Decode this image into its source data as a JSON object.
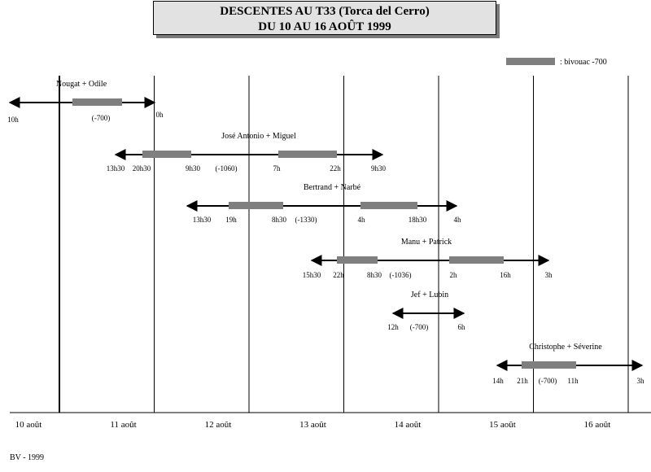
{
  "title_line1": "DESCENTES AU T33 (Torca del Cerro)",
  "title_line2": "DU 10 AU 16 AOÛT 1999",
  "footer": "BV - 1999",
  "colors": {
    "bivouac": "#7f7f7f",
    "line": "#000000",
    "title_bg": "#e2e2e2"
  },
  "chart_data": {
    "type": "timeline",
    "title": "DESCENTES AU T33 (Torca del Cerro)",
    "subtitle": "DU 10 AU 16 AOÛT 1999",
    "x_unit": "day (août 1999)",
    "xlim": [
      10,
      16.7
    ],
    "day_ticks": [
      {
        "day": 10,
        "label": "10 août"
      },
      {
        "day": 11,
        "label": "11 août"
      },
      {
        "day": 12,
        "label": "12 août"
      },
      {
        "day": 13,
        "label": "13 août"
      },
      {
        "day": 14,
        "label": "14 août"
      },
      {
        "day": 15,
        "label": "15 août"
      },
      {
        "day": 16,
        "label": "16 août"
      }
    ],
    "legend": {
      "label": ": bivouac -700",
      "position": "top-right"
    },
    "teams": [
      {
        "name": "Nougat + Odile",
        "start": 10.0,
        "end": 11.0,
        "bivouacs": [
          {
            "start": 10.6,
            "end": 11.1
          }
        ],
        "labels": [
          {
            "x": 10.0,
            "text": "10h",
            "row": "below"
          },
          {
            "x": 10.85,
            "text": "(-700)",
            "row": "under"
          },
          {
            "x": 11.05,
            "text": "0h",
            "row": "above"
          }
        ]
      },
      {
        "name": "José Antonio + Miguel",
        "start": 11.1,
        "end": 13.4,
        "bivouacs": [
          {
            "start": 11.35,
            "end": 11.88
          },
          {
            "start": 12.29,
            "end": 12.92
          }
        ],
        "labels": [
          {
            "x": 11.1,
            "text": "13h30"
          },
          {
            "x": 11.4,
            "text": "20h30"
          },
          {
            "x": 11.87,
            "text": "9h30"
          },
          {
            "x": 12.1,
            "text": "(-1060)"
          },
          {
            "x": 12.29,
            "text": "7h"
          },
          {
            "x": 12.92,
            "text": "22h"
          },
          {
            "x": 13.4,
            "text": "9h30"
          }
        ]
      },
      {
        "name": "Bertrand + Narbé",
        "start": 12.0,
        "end": 14.2,
        "bivouacs": [
          {
            "start": 12.79,
            "end": 13.38
          },
          {
            "start": 14.1,
            "end": 14.68
          }
        ],
        "labels": [
          {
            "x": 12.0,
            "text": "13h30"
          },
          {
            "x": 12.8,
            "text": "19h"
          },
          {
            "x": 13.38,
            "text": "8h30"
          },
          {
            "x": 13.57,
            "text": "(-1330)"
          },
          {
            "x": 14.15,
            "text": "4h"
          },
          {
            "x": 14.68,
            "text": "18h30"
          },
          {
            "x": 15.15,
            "text": "4h"
          }
        ]
      },
      {
        "name": "Manu + Patrick",
        "start": 13.1,
        "end": 15.1,
        "bivouacs": [
          {
            "start": 13.96,
            "end": 14.38
          },
          {
            "start": 15.1,
            "end": 15.67
          }
        ],
        "labels": [
          {
            "x": 13.1,
            "text": "15h30"
          },
          {
            "x": 13.95,
            "text": "22h"
          },
          {
            "x": 14.36,
            "text": "8h30"
          },
          {
            "x": 14.57,
            "text": "(-1036)"
          },
          {
            "x": 15.1,
            "text": "2h"
          },
          {
            "x": 15.67,
            "text": "16h"
          },
          {
            "x": 16.12,
            "text": "3h"
          }
        ]
      },
      {
        "name": "Jef + Lubin",
        "start": 14.5,
        "end": 15.25,
        "bivouacs": [],
        "labels": [
          {
            "x": 14.5,
            "text": "12h"
          },
          {
            "x": 14.79,
            "text": "(-700)"
          },
          {
            "x": 15.25,
            "text": "6h"
          }
        ]
      },
      {
        "name": "Christophe + Séverine",
        "start": 15.58,
        "end": 17.12,
        "bivouacs": [
          {
            "start": 15.88,
            "end": 16.46
          }
        ],
        "labels": [
          {
            "x": 15.58,
            "text": "14h"
          },
          {
            "x": 15.87,
            "text": "21h"
          },
          {
            "x": 16.17,
            "text": "(-700)"
          },
          {
            "x": 16.46,
            "text": "11h"
          },
          {
            "x": 17.12,
            "text": "3h"
          }
        ]
      }
    ]
  }
}
